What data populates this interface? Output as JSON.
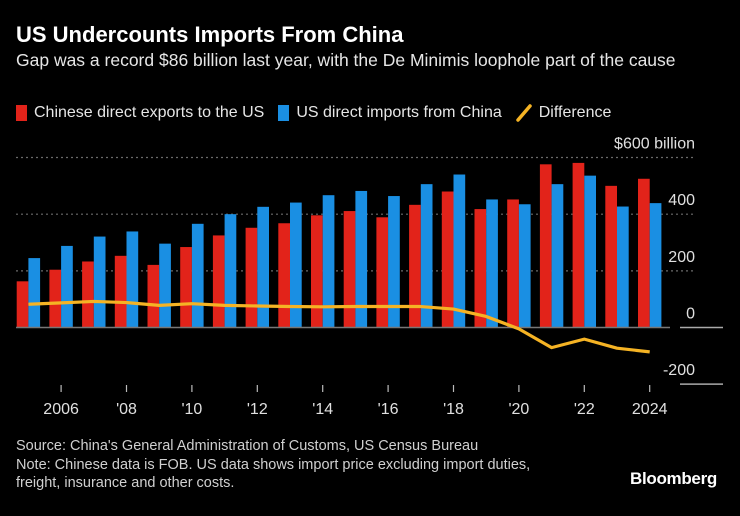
{
  "title": "US Undercounts Imports From China",
  "subtitle": "Gap was a record $86 billion last year, with the De Minimis loophole part of the cause",
  "legend": [
    {
      "label": "Chinese direct exports to the US",
      "color": "#e2231a"
    },
    {
      "label": "US direct imports from China",
      "color": "#1a8fe3"
    },
    {
      "label": "Difference",
      "color": "#f5b324"
    }
  ],
  "footer": {
    "source": "Source: China's General Administration of Customs, US Census Bureau",
    "note": "Note: Chinese data is FOB. US data shows import price excluding import duties, freight, insurance and other costs."
  },
  "logo": "Bloomberg",
  "chart_data": {
    "type": "bar",
    "x": [
      2005,
      2006,
      2007,
      2008,
      2009,
      2010,
      2011,
      2012,
      2013,
      2014,
      2015,
      2016,
      2017,
      2018,
      2019,
      2020,
      2021,
      2022,
      2023,
      2024
    ],
    "series": [
      {
        "name": "Chinese direct exports to the US",
        "type": "bar",
        "values": [
          163,
          204,
          233,
          253,
          221,
          284,
          325,
          352,
          368,
          396,
          411,
          389,
          433,
          480,
          418,
          452,
          576,
          581,
          500,
          525
        ]
      },
      {
        "name": "US direct imports from China",
        "type": "bar",
        "values": [
          245,
          288,
          321,
          339,
          296,
          366,
          400,
          426,
          441,
          467,
          482,
          464,
          506,
          540,
          452,
          435,
          506,
          536,
          427,
          439
        ]
      },
      {
        "name": "Difference",
        "type": "line",
        "values": [
          82,
          87,
          92,
          88,
          78,
          84,
          78,
          76,
          74,
          73,
          74,
          74,
          74,
          65,
          39,
          -5,
          -71,
          -41,
          -73,
          -86
        ]
      }
    ],
    "ylim": [
      -200,
      600
    ],
    "y_ticks": [
      "$600 billion",
      "400",
      "200",
      "0",
      "-200"
    ],
    "x_tick_labels": [
      {
        "year": 2006,
        "label": "2006"
      },
      {
        "year": 2008,
        "label": "'08"
      },
      {
        "year": 2010,
        "label": "'10"
      },
      {
        "year": 2012,
        "label": "'12"
      },
      {
        "year": 2014,
        "label": "'14"
      },
      {
        "year": 2016,
        "label": "'16"
      },
      {
        "year": 2018,
        "label": "'18"
      },
      {
        "year": 2020,
        "label": "'20"
      },
      {
        "year": 2022,
        "label": "'22"
      },
      {
        "year": 2024,
        "label": "2024"
      }
    ],
    "grid": true,
    "legend_position": "top-left"
  }
}
